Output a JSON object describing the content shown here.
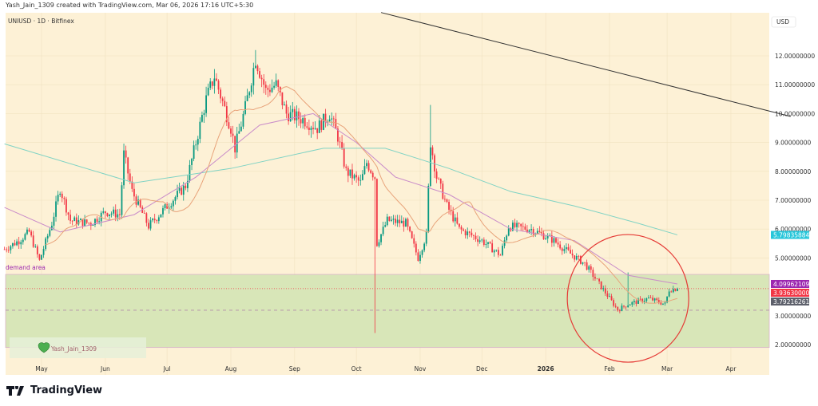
{
  "header": {
    "credit": "Yash_Jain_1309 created with TradingView.com, Mar 06, 2026 17:16 UTC+5:30",
    "symbol": "UNIUSD · 1D · Bitfinex",
    "currency": "USD"
  },
  "footer": {
    "brand": "TradingView"
  },
  "chart_data": {
    "type": "candlestick",
    "symbol": "UNIUSD",
    "interval": "1D",
    "exchange": "Bitfinex",
    "y_ticks": [
      "12.00000000",
      "11.00000000",
      "10.00000000",
      "9.00000000",
      "8.00000000",
      "7.00000000",
      "6.00000000",
      "5.00000000",
      "3.00000000",
      "2.00000000"
    ],
    "y_tick_values": [
      12,
      11,
      10,
      9,
      8,
      7,
      6,
      5,
      3,
      2
    ],
    "ylim": [
      1.6,
      13.5
    ],
    "x_ticks": [
      {
        "label": "May",
        "date": "2025-05-01"
      },
      {
        "label": "Jun",
        "date": "2025-06-01"
      },
      {
        "label": "Jul",
        "date": "2025-07-01"
      },
      {
        "label": "Aug",
        "date": "2025-08-01"
      },
      {
        "label": "Sep",
        "date": "2025-09-01"
      },
      {
        "label": "Oct",
        "date": "2025-10-01"
      },
      {
        "label": "Nov",
        "date": "2025-11-01"
      },
      {
        "label": "Dec",
        "date": "2025-12-01"
      },
      {
        "label": "2026",
        "date": "2026-01-01"
      },
      {
        "label": "Feb",
        "date": "2026-02-01"
      },
      {
        "label": "Mar",
        "date": "2026-03-01"
      },
      {
        "label": "Apr",
        "date": "2026-04-01"
      }
    ],
    "xlim": [
      "2025-04-13",
      "2026-05-01"
    ],
    "price_path": [
      [
        "2025-04-13",
        5.3
      ],
      [
        "2025-04-20",
        5.6
      ],
      [
        "2025-04-25",
        5.9
      ],
      [
        "2025-04-30",
        4.9
      ],
      [
        "2025-05-06",
        6.2
      ],
      [
        "2025-05-10",
        7.4
      ],
      [
        "2025-05-15",
        6.3
      ],
      [
        "2025-05-25",
        6.2
      ],
      [
        "2025-06-01",
        6.6
      ],
      [
        "2025-06-08",
        6.5
      ],
      [
        "2025-06-10",
        8.6
      ],
      [
        "2025-06-14",
        7.3
      ],
      [
        "2025-06-22",
        6.1
      ],
      [
        "2025-07-01",
        6.8
      ],
      [
        "2025-07-10",
        7.5
      ],
      [
        "2025-07-15",
        9.0
      ],
      [
        "2025-07-20",
        10.5
      ],
      [
        "2025-07-24",
        11.3
      ],
      [
        "2025-08-01",
        9.5
      ],
      [
        "2025-08-03",
        8.8
      ],
      [
        "2025-08-08",
        10.2
      ],
      [
        "2025-08-13",
        11.9
      ],
      [
        "2025-08-18",
        10.8
      ],
      [
        "2025-08-23",
        11.0
      ],
      [
        "2025-08-28",
        10.0
      ],
      [
        "2025-09-05",
        9.8
      ],
      [
        "2025-09-12",
        9.5
      ],
      [
        "2025-09-18",
        10.0
      ],
      [
        "2025-09-22",
        9.2
      ],
      [
        "2025-09-26",
        8.0
      ],
      [
        "2025-10-03",
        7.6
      ],
      [
        "2025-10-06",
        8.3
      ],
      [
        "2025-10-10",
        7.8
      ],
      [
        "2025-10-11",
        5.5
      ],
      [
        "2025-10-16",
        6.3
      ],
      [
        "2025-10-25",
        6.2
      ],
      [
        "2025-10-31",
        5.0
      ],
      [
        "2025-11-04",
        5.8
      ],
      [
        "2025-11-06",
        9.0
      ],
      [
        "2025-11-09",
        7.8
      ],
      [
        "2025-11-14",
        6.8
      ],
      [
        "2025-11-20",
        6.0
      ],
      [
        "2025-12-01",
        5.6
      ],
      [
        "2025-12-10",
        5.1
      ],
      [
        "2025-12-14",
        6.1
      ],
      [
        "2025-12-25",
        6.0
      ],
      [
        "2026-01-05",
        5.6
      ],
      [
        "2026-01-12",
        5.2
      ],
      [
        "2026-01-20",
        4.8
      ],
      [
        "2026-01-28",
        4.0
      ],
      [
        "2026-02-05",
        3.2
      ],
      [
        "2026-02-10",
        3.4
      ],
      [
        "2026-02-20",
        3.6
      ],
      [
        "2026-02-28",
        3.4
      ],
      [
        "2026-03-02",
        3.9
      ],
      [
        "2026-03-06",
        3.94
      ]
    ],
    "wicks": [
      {
        "date": "2025-10-10",
        "low": 2.4
      },
      {
        "date": "2025-11-06",
        "high": 10.3
      },
      {
        "date": "2026-02-10",
        "high": 4.5
      },
      {
        "date": "2025-08-13",
        "high": 12.2
      }
    ],
    "moving_averages": [
      {
        "color": "#7fd3c4",
        "points": [
          [
            "2025-04-13",
            8.95
          ],
          [
            "2025-06-15",
            7.6
          ],
          [
            "2025-08-01",
            8.1
          ],
          [
            "2025-09-15",
            8.8
          ],
          [
            "2025-10-15",
            8.8
          ],
          [
            "2025-11-15",
            8.1
          ],
          [
            "2025-12-15",
            7.3
          ],
          [
            "2026-01-15",
            6.8
          ],
          [
            "2026-02-15",
            6.2
          ],
          [
            "2026-03-06",
            5.8
          ]
        ]
      },
      {
        "color": "#c98bc9",
        "points": [
          [
            "2025-04-13",
            6.75
          ],
          [
            "2025-05-10",
            5.9
          ],
          [
            "2025-06-15",
            6.5
          ],
          [
            "2025-07-15",
            7.8
          ],
          [
            "2025-08-15",
            9.6
          ],
          [
            "2025-09-10",
            10.0
          ],
          [
            "2025-10-01",
            9.0
          ],
          [
            "2025-10-20",
            7.8
          ],
          [
            "2025-11-15",
            7.2
          ],
          [
            "2025-12-15",
            6.0
          ],
          [
            "2026-01-15",
            5.6
          ],
          [
            "2026-02-10",
            4.4
          ],
          [
            "2026-03-06",
            4.1
          ]
        ]
      },
      {
        "color": "#e8a37a",
        "period": 20
      }
    ],
    "price_labels": [
      {
        "value": "5.79835884",
        "color": "#26c6da"
      },
      {
        "value": "4.09962109",
        "color": "#9c27b0"
      },
      {
        "value": "3.93630000",
        "color": "#f23645"
      },
      {
        "value": "3.79216261",
        "color": "#5d606b"
      }
    ],
    "demand_area": {
      "label": "demand area",
      "top": 4.43,
      "bottom": 1.9,
      "dashed_level": 3.19,
      "color": "#d8e6b8"
    },
    "trendline": [
      [
        "2025-10-13",
        13.5
      ],
      [
        "2026-04-30",
        9.9
      ]
    ],
    "annotation_circle": {
      "center": [
        "2026-02-10",
        3.6
      ],
      "color": "#e53935"
    },
    "watermark": "Yash_Jain_1309",
    "colors": {
      "up": "#089981",
      "down": "#f23645",
      "background": "#fdf1d6"
    }
  }
}
